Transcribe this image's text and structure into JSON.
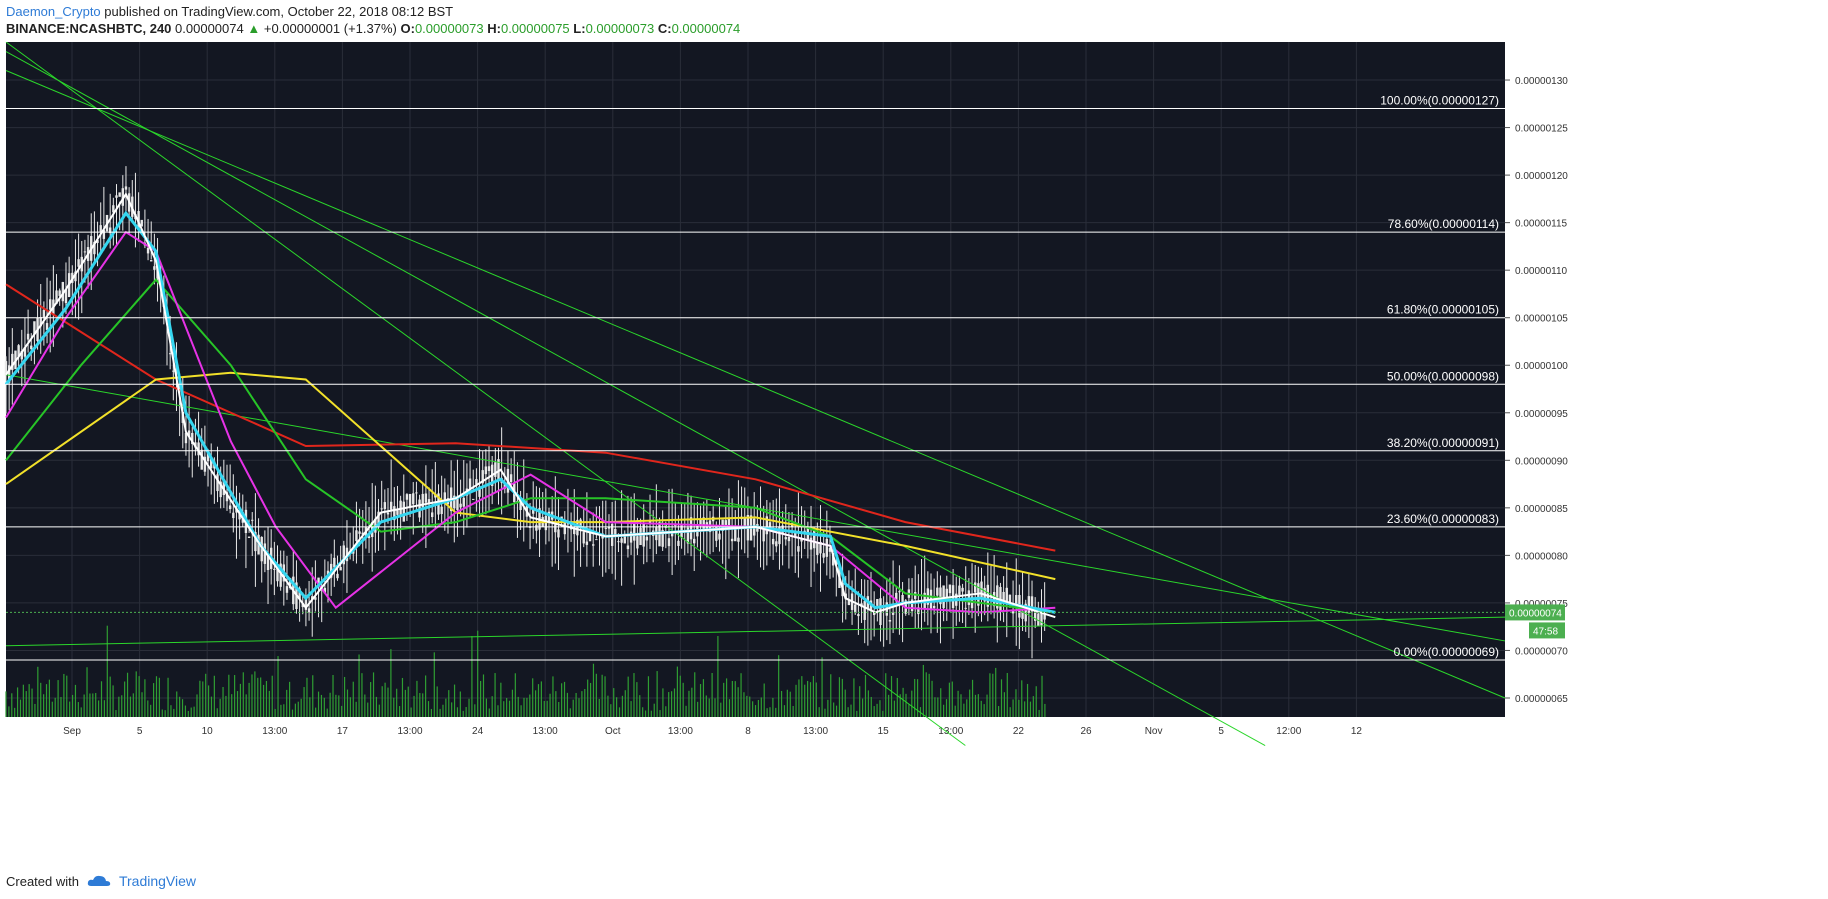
{
  "header": {
    "author": "Daemon_Crypto",
    "published_text": "published on TradingView.com, October 22, 2018 08:12 BST"
  },
  "symbol_bar": {
    "symbol": "BINANCE:NCASHBTC, 240",
    "last": "0.00000074",
    "change": "+0.00000001 (+1.37%)",
    "open_label": "O:",
    "open": "0.00000073",
    "high_label": "H:",
    "high": "0.00000075",
    "low_label": "L:",
    "low": "0.00000073",
    "close_label": "C:",
    "close": "0.00000074"
  },
  "footer": {
    "created_with": "Created with",
    "brand": "TradingView"
  },
  "colors": {
    "background": "#131722",
    "grid": "#2a2e39",
    "candle": "#e8e8e8",
    "volume": "#2f9e33",
    "fib": "#ffffff",
    "trend": "#2bd62b",
    "ma_red": "#e0261c",
    "ma_yellow": "#f2e12a",
    "ma_green": "#27c427",
    "ma_magenta": "#e632e6",
    "ma_cyan": "#35d6f0",
    "ma_white": "#ffffff",
    "price_tag": "#4caf50"
  },
  "chart_data": {
    "type": "line",
    "title": "",
    "ylim": [
      6.3e-07,
      1.34e-06
    ],
    "y_ticks": [
      "0.00000130",
      "0.00000125",
      "0.00000120",
      "0.00000115",
      "0.00000110",
      "0.00000105",
      "0.00000100",
      "0.00000095",
      "0.00000090",
      "0.00000085",
      "0.00000080",
      "0.00000075",
      "0.00000070",
      "0.00000065"
    ],
    "x_ticks": [
      "Sep",
      "5",
      "10",
      "13:00",
      "17",
      "13:00",
      "24",
      "13:00",
      "Oct",
      "13:00",
      "8",
      "13:00",
      "15",
      "13:00",
      "22",
      "26",
      "Nov",
      "5",
      "12:00",
      "12"
    ],
    "fib_levels": [
      {
        "label": "100.00%(0.00000127)",
        "price": 1.27e-06
      },
      {
        "label": "78.60%(0.00000114)",
        "price": 1.14e-06
      },
      {
        "label": "61.80%(0.00000105)",
        "price": 1.05e-06
      },
      {
        "label": "50.00%(0.00000098)",
        "price": 9.8e-07
      },
      {
        "label": "38.20%(0.00000091)",
        "price": 9.1e-07
      },
      {
        "label": "23.60%(0.00000083)",
        "price": 8.3e-07
      },
      {
        "label": "0.00%(0.00000069)",
        "price": 6.9e-07
      }
    ],
    "last_price": "0.00000074",
    "countdown": "47:58",
    "series": [
      {
        "color_key": "ma_red",
        "x": [
          0,
          0.1,
          0.2,
          0.3,
          0.4,
          0.5,
          0.6,
          0.7
        ],
        "values": [
          1.085e-06,
          9.85e-07,
          9.15e-07,
          9.18e-07,
          9.08e-07,
          8.8e-07,
          8.35e-07,
          8.05e-07
        ]
      },
      {
        "color_key": "ma_yellow",
        "x": [
          0,
          0.1,
          0.15,
          0.2,
          0.3,
          0.35,
          0.4,
          0.5,
          0.6,
          0.7
        ],
        "values": [
          8.75e-07,
          9.85e-07,
          9.92e-07,
          9.85e-07,
          8.45e-07,
          8.35e-07,
          8.35e-07,
          8.4e-07,
          8.1e-07,
          7.75e-07
        ]
      },
      {
        "color_key": "ma_green",
        "x": [
          0,
          0.05,
          0.1,
          0.15,
          0.2,
          0.25,
          0.3,
          0.35,
          0.4,
          0.5,
          0.55,
          0.6,
          0.65,
          0.7
        ],
        "values": [
          9e-07,
          1e-06,
          1.09e-06,
          1e-06,
          8.8e-07,
          8.25e-07,
          8.35e-07,
          8.6e-07,
          8.6e-07,
          8.5e-07,
          8.2e-07,
          7.6e-07,
          7.5e-07,
          7.4e-07
        ]
      },
      {
        "color_key": "ma_magenta",
        "x": [
          0,
          0.04,
          0.08,
          0.1,
          0.15,
          0.18,
          0.22,
          0.3,
          0.35,
          0.4,
          0.5,
          0.55,
          0.6,
          0.65,
          0.7
        ],
        "values": [
          9.45e-07,
          1.05e-06,
          1.14e-06,
          1.12e-06,
          9.2e-07,
          8.3e-07,
          7.45e-07,
          8.45e-07,
          8.85e-07,
          8.35e-07,
          8.3e-07,
          8.1e-07,
          7.45e-07,
          7.4e-07,
          7.45e-07
        ]
      },
      {
        "color_key": "ma_cyan",
        "x": [
          0,
          0.04,
          0.08,
          0.1,
          0.12,
          0.17,
          0.2,
          0.25,
          0.3,
          0.33,
          0.35,
          0.4,
          0.5,
          0.55,
          0.56,
          0.58,
          0.6,
          0.65,
          0.7
        ],
        "values": [
          9.8e-07,
          1.06e-06,
          1.16e-06,
          1.12e-06,
          9.5e-07,
          8.1e-07,
          7.55e-07,
          8.35e-07,
          8.6e-07,
          8.8e-07,
          8.5e-07,
          8.2e-07,
          8.3e-07,
          8.2e-07,
          7.7e-07,
          7.45e-07,
          7.5e-07,
          7.55e-07,
          7.4e-07
        ]
      },
      {
        "color_key": "ma_white",
        "x": [
          0,
          0.04,
          0.08,
          0.1,
          0.12,
          0.17,
          0.2,
          0.25,
          0.3,
          0.33,
          0.35,
          0.4,
          0.5,
          0.55,
          0.56,
          0.58,
          0.6,
          0.65,
          0.7
        ],
        "values": [
          9.9e-07,
          1.08e-06,
          1.18e-06,
          1.11e-06,
          9.3e-07,
          8.1e-07,
          7.45e-07,
          8.45e-07,
          8.6e-07,
          8.9e-07,
          8.4e-07,
          8.2e-07,
          8.3e-07,
          8.1e-07,
          7.55e-07,
          7.4e-07,
          7.5e-07,
          7.6e-07,
          7.35e-07
        ]
      }
    ],
    "trendlines": [
      [
        [
          0.0,
          1.34e-06
        ],
        [
          0.64,
          6e-07
        ]
      ],
      [
        [
          0.0,
          1.33e-06
        ],
        [
          0.84,
          6e-07
        ]
      ],
      [
        [
          0.0,
          1.31e-06
        ],
        [
          1.0,
          6.5e-07
        ]
      ],
      [
        [
          0.0,
          9.9e-07
        ],
        [
          1.0,
          7.1e-07
        ]
      ],
      [
        [
          0.0,
          7.05e-07
        ],
        [
          1.0,
          7.35e-07
        ]
      ]
    ]
  }
}
